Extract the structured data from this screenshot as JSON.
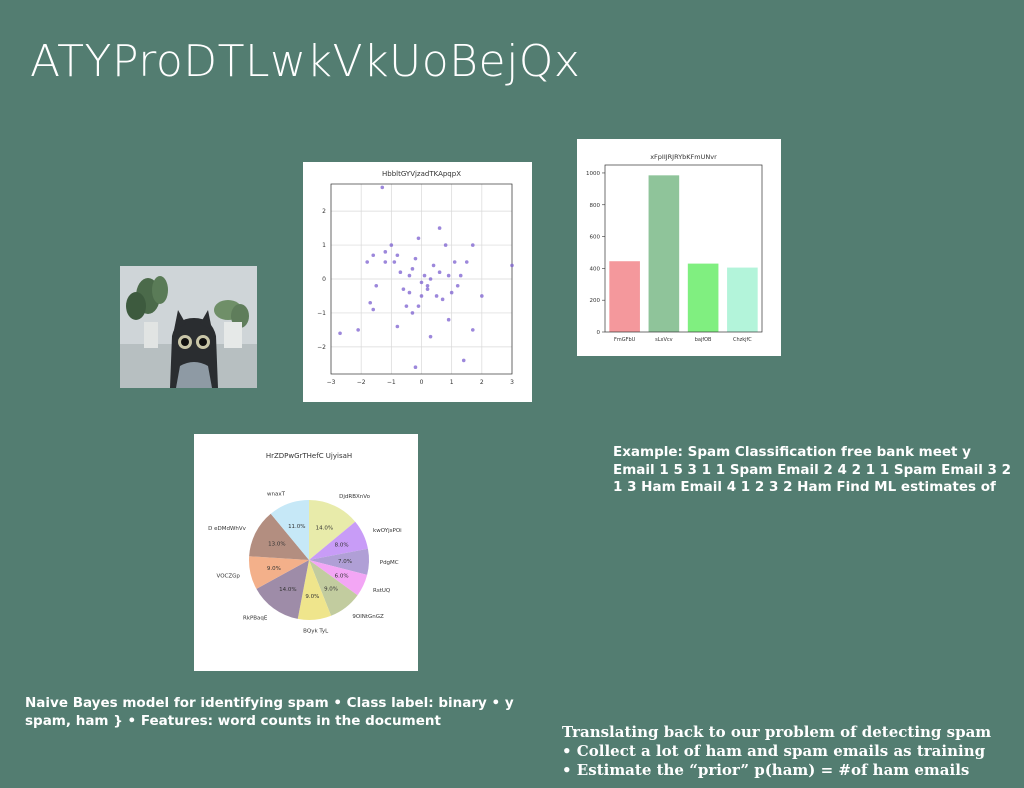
{
  "slide": {
    "title": "ATYProDTLwkVkUoBejQx",
    "example_text": "Example: Spam Classification free bank meet y Email 1 5 3 1 1 Spam Email 2 4 2 1 1 Spam Email 3 2 1 3 Ham Email 4 1 2 3 2 Ham Find ML estimates of",
    "naive_text": "Naive Bayes model for identifying spam • Class label: binary • y spam, ham } • Features: word counts in the document",
    "translate_lines": [
      "Translating back to our problem of detecting spam",
      "• Collect a lot of ham and spam emails as training",
      "• Estimate the “prior” p(ham) = #of ham emails"
    ]
  },
  "chart_data": [
    {
      "type": "scatter",
      "title": "HbbltGYVjzadTKApqpX",
      "xlim": [
        -3,
        3
      ],
      "ylim": [
        -2.8,
        2.8
      ],
      "xticks": [
        "−3",
        "−2",
        "−1",
        "0",
        "1",
        "2",
        "3"
      ],
      "yticks": [
        "2",
        "1",
        "0",
        "−1",
        "−2"
      ],
      "grid": true,
      "color": "#7b5fcf",
      "points": [
        [
          -1.3,
          2.7
        ],
        [
          -1.2,
          0.5
        ],
        [
          0.6,
          1.5
        ],
        [
          -0.2,
          -2.6
        ],
        [
          1.4,
          -2.4
        ],
        [
          3.0,
          0.4
        ],
        [
          -2.7,
          -1.6
        ],
        [
          -2.1,
          -1.5
        ],
        [
          -1.5,
          -0.2
        ],
        [
          -1.7,
          -0.7
        ],
        [
          -1.6,
          -0.9
        ],
        [
          -1.8,
          0.5
        ],
        [
          -1.6,
          0.7
        ],
        [
          -1.2,
          0.8
        ],
        [
          -1.0,
          1.0
        ],
        [
          -0.9,
          0.5
        ],
        [
          -0.8,
          0.7
        ],
        [
          -0.7,
          0.2
        ],
        [
          -0.6,
          -0.3
        ],
        [
          -0.5,
          -0.8
        ],
        [
          -0.4,
          0.1
        ],
        [
          -0.3,
          0.3
        ],
        [
          -0.2,
          0.6
        ],
        [
          -0.1,
          1.2
        ],
        [
          0.0,
          -0.1
        ],
        [
          0.1,
          0.1
        ],
        [
          0.2,
          -0.3
        ],
        [
          0.3,
          0.0
        ],
        [
          0.4,
          0.4
        ],
        [
          0.5,
          -0.5
        ],
        [
          0.6,
          0.2
        ],
        [
          0.7,
          -0.6
        ],
        [
          0.8,
          1.0
        ],
        [
          0.9,
          0.1
        ],
        [
          1.0,
          -0.4
        ],
        [
          1.1,
          0.5
        ],
        [
          1.2,
          -0.2
        ],
        [
          1.5,
          0.5
        ],
        [
          1.7,
          1.0
        ],
        [
          1.7,
          -1.5
        ],
        [
          2.0,
          -0.5
        ],
        [
          0.3,
          -1.7
        ],
        [
          -0.3,
          -1.0
        ],
        [
          0.0,
          -0.5
        ],
        [
          -0.1,
          -0.8
        ],
        [
          0.2,
          -0.2
        ],
        [
          -0.8,
          -1.4
        ],
        [
          0.9,
          -1.2
        ],
        [
          1.3,
          0.1
        ],
        [
          -0.4,
          -0.4
        ]
      ]
    },
    {
      "type": "bar",
      "title": "xFpIIJRJRYbKFmUNvr",
      "categories": [
        "FmGFbU",
        "sLxVcv",
        "bajfOB",
        "ChzkjfC"
      ],
      "values": [
        445,
        985,
        430,
        405
      ],
      "colors": [
        "#f4989c",
        "#8fc49a",
        "#80ef80",
        "#b3f4da"
      ],
      "ylim": [
        0,
        1050
      ],
      "yticks": [
        0,
        200,
        400,
        600,
        800,
        1000
      ]
    },
    {
      "type": "pie",
      "title": "HrZDPwGrTHefC UjyisaH",
      "slices": [
        {
          "label": "DjdRBXnVo",
          "value": 14.0,
          "color": "#e8ebaa"
        },
        {
          "label": "kwOYjsPOi",
          "value": 8.0,
          "color": "#c89cf7"
        },
        {
          "label": "PdgMC",
          "value": 7.0,
          "color": "#b09fd6"
        },
        {
          "label": "RstUQ",
          "value": 6.0,
          "color": "#f3a6f5"
        },
        {
          "label": "9OlNtGnGZ",
          "value": 9.0,
          "color": "#c2cc9f"
        },
        {
          "label": "BQyk TyL",
          "value": 9.0,
          "color": "#efe58c"
        },
        {
          "label": "RkPBaqE",
          "value": 14.0,
          "color": "#9e8ca8"
        },
        {
          "label": "VOCZGp",
          "value": 9.0,
          "color": "#f3b08a"
        },
        {
          "label": "D eDMdWhVv",
          "value": 13.0,
          "color": "#b38e80"
        },
        {
          "label": "wnaxT",
          "value": 11.0,
          "color": "#c6e8f7"
        }
      ],
      "labels_pct": [
        "14.0%",
        "8.0%",
        "7.0%",
        "6.0%",
        "9.0%",
        "9.0%",
        "14.0%",
        "9.0%",
        "13.0%",
        "11.0%"
      ]
    }
  ],
  "icons": {
    "photo": "cat-photo-icon"
  }
}
